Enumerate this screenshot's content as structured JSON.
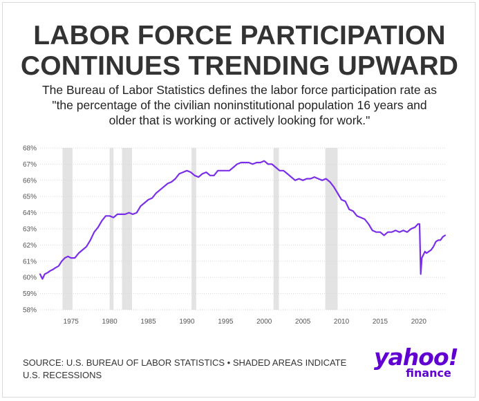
{
  "title_lines": [
    "LABOR FORCE PARTICIPATION",
    "CONTINUES TRENDING UPWARD"
  ],
  "subtitle_lines": [
    "The Bureau of Labor Statistics defines the labor force participation rate as",
    "\"the percentage of the civilian noninstitutional population 16 years and",
    "older that is working or actively looking for work.\""
  ],
  "source_lines": [
    "SOURCE: U.S. BUREAU OF LABOR STATISTICS • SHADED AREAS INDICATE",
    "U.S. RECESSIONS"
  ],
  "logo": {
    "word": "yahoo!",
    "sub": "finance"
  },
  "colors": {
    "line": "#7b2ee8",
    "recession": "#e3e3e3",
    "grid": "#d6d6d6",
    "title": "#333333",
    "logo": "#6001d2"
  },
  "chart_data": {
    "type": "line",
    "title": "Labor force participation rate",
    "xlabel": "",
    "ylabel": "",
    "xlim": [
      1971,
      2023.5
    ],
    "ylim": [
      58,
      68
    ],
    "y_ticks": [
      58,
      59,
      60,
      61,
      62,
      63,
      64,
      65,
      66,
      67,
      68
    ],
    "y_tick_labels": [
      "58%",
      "59%",
      "60%",
      "61%",
      "62%",
      "63%",
      "64%",
      "65%",
      "66%",
      "67%",
      "68%"
    ],
    "x_ticks": [
      1975,
      1980,
      1985,
      1990,
      1995,
      2000,
      2005,
      2010,
      2015,
      2020
    ],
    "x_tick_labels": [
      "1975",
      "1980",
      "1985",
      "1990",
      "1995",
      "2000",
      "2005",
      "2010",
      "2015",
      "2020"
    ],
    "grid": true,
    "recessions": [
      [
        1973.9,
        1975.2
      ],
      [
        1980.0,
        1980.5
      ],
      [
        1981.6,
        1982.9
      ],
      [
        1990.6,
        1991.2
      ],
      [
        2001.2,
        2001.9
      ],
      [
        2007.9,
        2009.5
      ]
    ],
    "series": [
      {
        "name": "Labor force participation rate (%)",
        "x": [
          1971.0,
          1971.3,
          1971.6,
          1972.0,
          1972.3,
          1972.7,
          1973.0,
          1973.4,
          1973.8,
          1974.2,
          1974.6,
          1975.0,
          1975.5,
          1976.0,
          1976.5,
          1977.0,
          1977.5,
          1978.0,
          1978.5,
          1979.0,
          1979.5,
          1980.0,
          1980.5,
          1981.0,
          1981.5,
          1982.0,
          1982.5,
          1983.0,
          1983.5,
          1984.0,
          1984.5,
          1985.0,
          1985.5,
          1986.0,
          1986.5,
          1987.0,
          1987.5,
          1988.0,
          1988.5,
          1989.0,
          1989.5,
          1990.0,
          1990.5,
          1991.0,
          1991.5,
          1992.0,
          1992.5,
          1993.0,
          1993.5,
          1994.0,
          1994.5,
          1995.0,
          1995.5,
          1996.0,
          1996.5,
          1997.0,
          1997.5,
          1998.0,
          1998.5,
          1999.0,
          1999.5,
          2000.0,
          2000.5,
          2001.0,
          2001.5,
          2002.0,
          2002.5,
          2003.0,
          2003.5,
          2004.0,
          2004.5,
          2005.0,
          2005.5,
          2006.0,
          2006.5,
          2007.0,
          2007.5,
          2008.0,
          2008.5,
          2009.0,
          2009.5,
          2010.0,
          2010.5,
          2011.0,
          2011.5,
          2012.0,
          2012.5,
          2013.0,
          2013.5,
          2014.0,
          2014.5,
          2015.0,
          2015.5,
          2016.0,
          2016.5,
          2017.0,
          2017.5,
          2018.0,
          2018.5,
          2019.0,
          2019.5,
          2019.9,
          2020.1,
          2020.25,
          2020.4,
          2020.6,
          2020.8,
          2021.0,
          2021.3,
          2021.6,
          2021.9,
          2022.2,
          2022.5,
          2022.8,
          2023.1,
          2023.4
        ],
        "values": [
          60.2,
          59.9,
          60.2,
          60.3,
          60.4,
          60.5,
          60.6,
          60.7,
          61.0,
          61.2,
          61.3,
          61.2,
          61.2,
          61.5,
          61.7,
          61.9,
          62.3,
          62.8,
          63.1,
          63.5,
          63.8,
          63.8,
          63.7,
          63.9,
          63.9,
          63.9,
          64.0,
          63.9,
          64.0,
          64.4,
          64.6,
          64.8,
          64.9,
          65.2,
          65.4,
          65.6,
          65.8,
          65.9,
          66.1,
          66.4,
          66.5,
          66.6,
          66.5,
          66.3,
          66.2,
          66.4,
          66.5,
          66.3,
          66.3,
          66.6,
          66.6,
          66.6,
          66.6,
          66.8,
          67.0,
          67.1,
          67.1,
          67.1,
          67.0,
          67.1,
          67.1,
          67.2,
          67.0,
          67.0,
          66.8,
          66.6,
          66.6,
          66.4,
          66.2,
          66.0,
          66.1,
          66.0,
          66.1,
          66.1,
          66.2,
          66.1,
          66.0,
          66.1,
          65.9,
          65.6,
          65.2,
          64.8,
          64.7,
          64.2,
          64.1,
          63.8,
          63.7,
          63.6,
          63.3,
          62.9,
          62.8,
          62.8,
          62.6,
          62.8,
          62.8,
          62.9,
          62.8,
          62.9,
          62.8,
          63.0,
          63.1,
          63.3,
          63.3,
          60.2,
          61.2,
          61.4,
          61.6,
          61.5,
          61.6,
          61.7,
          61.9,
          62.2,
          62.3,
          62.3,
          62.5,
          62.6
        ]
      }
    ]
  }
}
